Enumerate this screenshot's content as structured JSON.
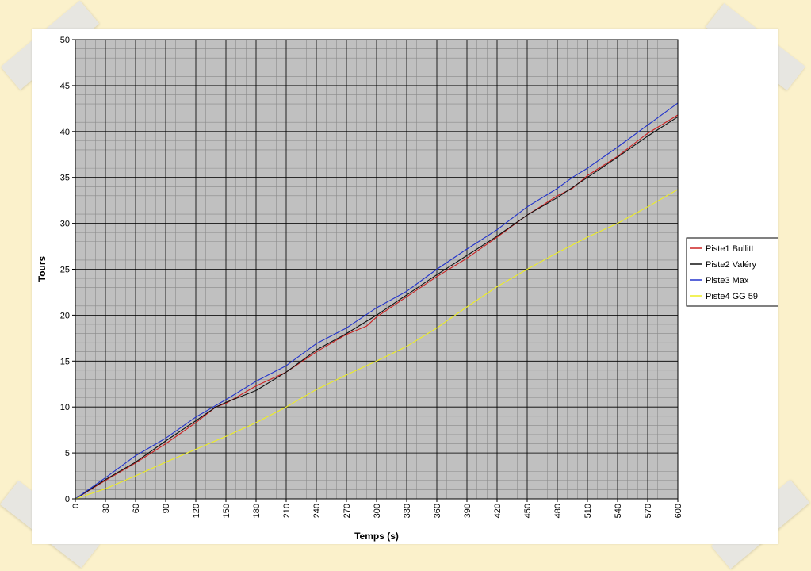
{
  "chart_data": {
    "type": "line",
    "title": "",
    "xlabel": "Temps (s)",
    "ylabel": "Tours",
    "xlim": [
      0,
      600
    ],
    "ylim": [
      0,
      50
    ],
    "x_ticks": [
      0,
      30,
      60,
      90,
      120,
      150,
      180,
      210,
      240,
      270,
      300,
      330,
      360,
      390,
      420,
      450,
      480,
      510,
      540,
      570,
      600
    ],
    "y_ticks": [
      0,
      5,
      10,
      15,
      20,
      25,
      30,
      35,
      40,
      45,
      50
    ],
    "x_minor_step": 10,
    "y_minor_step": 1,
    "grid": true,
    "legend_position": "right",
    "plot_background": "#c0c0c0",
    "series": [
      {
        "name": "Piste1 Bullitt",
        "color": "#cc2222",
        "points": [
          [
            0,
            0
          ],
          [
            30,
            2
          ],
          [
            60,
            3.9
          ],
          [
            90,
            6
          ],
          [
            120,
            8.3
          ],
          [
            140,
            10
          ],
          [
            150,
            10.4
          ],
          [
            180,
            12.3
          ],
          [
            210,
            13.8
          ],
          [
            240,
            16
          ],
          [
            270,
            17.9
          ],
          [
            290,
            18.8
          ],
          [
            300,
            19.8
          ],
          [
            330,
            22
          ],
          [
            360,
            24.2
          ],
          [
            390,
            26.2
          ],
          [
            420,
            28.5
          ],
          [
            450,
            30.9
          ],
          [
            480,
            33
          ],
          [
            495,
            33.8
          ],
          [
            510,
            35.2
          ],
          [
            540,
            37.3
          ],
          [
            570,
            39.8
          ],
          [
            600,
            41.8
          ]
        ]
      },
      {
        "name": "Piste2 Valéry",
        "color": "#111111",
        "points": [
          [
            0,
            0
          ],
          [
            30,
            2.1
          ],
          [
            60,
            4
          ],
          [
            90,
            6.3
          ],
          [
            120,
            8.5
          ],
          [
            140,
            10
          ],
          [
            150,
            10.5
          ],
          [
            180,
            11.8
          ],
          [
            210,
            13.8
          ],
          [
            240,
            16.2
          ],
          [
            270,
            18
          ],
          [
            300,
            20
          ],
          [
            330,
            22.2
          ],
          [
            360,
            24.4
          ],
          [
            390,
            26.5
          ],
          [
            420,
            28.6
          ],
          [
            450,
            30.9
          ],
          [
            480,
            32.8
          ],
          [
            510,
            35
          ],
          [
            540,
            37.2
          ],
          [
            570,
            39.5
          ],
          [
            600,
            41.6
          ]
        ]
      },
      {
        "name": "Piste3 Max",
        "color": "#2233cc",
        "points": [
          [
            0,
            0
          ],
          [
            30,
            2.3
          ],
          [
            60,
            4.7
          ],
          [
            90,
            6.6
          ],
          [
            120,
            8.9
          ],
          [
            150,
            10.8
          ],
          [
            180,
            12.8
          ],
          [
            210,
            14.5
          ],
          [
            240,
            16.9
          ],
          [
            270,
            18.6
          ],
          [
            300,
            20.8
          ],
          [
            330,
            22.6
          ],
          [
            360,
            25
          ],
          [
            390,
            27.2
          ],
          [
            420,
            29.3
          ],
          [
            450,
            31.8
          ],
          [
            480,
            33.8
          ],
          [
            495,
            35
          ],
          [
            510,
            36
          ],
          [
            540,
            38.3
          ],
          [
            570,
            40.7
          ],
          [
            600,
            43.1
          ]
        ]
      },
      {
        "name": "Piste4 GG 59",
        "color": "#eeee22",
        "points": [
          [
            0,
            0
          ],
          [
            30,
            1.1
          ],
          [
            60,
            2.5
          ],
          [
            90,
            4
          ],
          [
            120,
            5.4
          ],
          [
            150,
            6.8
          ],
          [
            180,
            8.3
          ],
          [
            210,
            10
          ],
          [
            240,
            11.9
          ],
          [
            270,
            13.5
          ],
          [
            300,
            15
          ],
          [
            330,
            16.6
          ],
          [
            360,
            18.6
          ],
          [
            390,
            20.9
          ],
          [
            420,
            23.1
          ],
          [
            450,
            25
          ],
          [
            480,
            26.8
          ],
          [
            510,
            28.5
          ],
          [
            540,
            30
          ],
          [
            570,
            31.8
          ],
          [
            600,
            33.7
          ]
        ]
      }
    ]
  }
}
